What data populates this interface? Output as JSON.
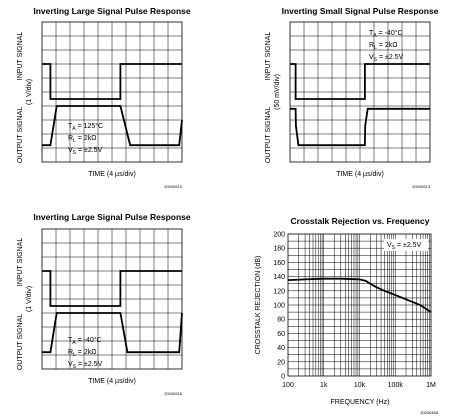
{
  "chart_data": [
    {
      "type": "line",
      "title": "Inverting Large Signal Pulse Response",
      "xlabel": "TIME (4 µs/div)",
      "ylabel_top": "INPUT SIGNAL",
      "ylabel_bottom": "OUTPUT SIGNAL",
      "ylabel_scale": "(1 V/div)",
      "conditions": [
        {
          "sym": "T",
          "sub": "A",
          "val": " = 125°C"
        },
        {
          "sym": "R",
          "sub": "L",
          "val": " = 2kΩ"
        },
        {
          "sym": "V",
          "sub": "S",
          "val": " = ±2.5V"
        }
      ],
      "figure_id": "20030615",
      "series": [
        {
          "name": "INPUT SIGNAL",
          "x": [
            0,
            0.6,
            0.6,
            5.6,
            5.6,
            10
          ],
          "y": [
            7.0,
            7.0,
            4.5,
            4.5,
            7.0,
            7.0
          ]
        },
        {
          "name": "OUTPUT SIGNAL",
          "x": [
            0,
            0.6,
            1.05,
            5.6,
            6.3,
            9.8,
            10
          ],
          "y": [
            1.2,
            1.2,
            4.0,
            4.0,
            1.2,
            1.2,
            3.0
          ]
        }
      ]
    },
    {
      "type": "line",
      "title": "Inverting Small Signal Pulse Response",
      "xlabel": "TIME (4 µs/div)",
      "ylabel_top": "INPUT SIGNAL",
      "ylabel_bottom": "OUTPUT SIGNAL",
      "ylabel_scale": "(50 mV/div)",
      "conditions": [
        {
          "sym": "T",
          "sub": "A",
          "val": " = -40°C"
        },
        {
          "sym": "R",
          "sub": "L",
          "val": " = 2kΩ"
        },
        {
          "sym": "V",
          "sub": "S",
          "val": " = ±2.5V"
        }
      ],
      "figure_id": "20030613",
      "series": [
        {
          "name": "INPUT SIGNAL",
          "x": [
            0,
            0.4,
            0.4,
            5.35,
            5.35,
            10
          ],
          "y": [
            7.0,
            7.0,
            4.5,
            4.5,
            7.0,
            7.0
          ]
        },
        {
          "name": "OUTPUT SIGNAL",
          "x": [
            0,
            0.4,
            0.42,
            0.6,
            5.35,
            5.37,
            5.55,
            10
          ],
          "y": [
            3.8,
            3.8,
            2.6,
            1.2,
            1.2,
            2.6,
            3.8,
            3.8
          ]
        }
      ]
    },
    {
      "type": "line",
      "title": "Inverting Large Signal Pulse Response",
      "xlabel": "TIME (4 µs/div)",
      "ylabel_top": "INPUT SIGNAL",
      "ylabel_bottom": "OUTPUT SIGNAL",
      "ylabel_scale": "(1 V/div)",
      "conditions": [
        {
          "sym": "T",
          "sub": "A",
          "val": " = -40°C"
        },
        {
          "sym": "R",
          "sub": "L",
          "val": " = 2kΩ"
        },
        {
          "sym": "V",
          "sub": "S",
          "val": " = ±2.5V"
        }
      ],
      "figure_id": "20030616",
      "series": [
        {
          "name": "INPUT SIGNAL",
          "x": [
            0,
            0.6,
            0.6,
            5.6,
            5.6,
            10
          ],
          "y": [
            7.0,
            7.0,
            4.5,
            4.5,
            7.0,
            7.0
          ]
        },
        {
          "name": "OUTPUT SIGNAL",
          "x": [
            0,
            0.6,
            1.05,
            5.6,
            6.1,
            9.8,
            10
          ],
          "y": [
            1.2,
            1.2,
            4.0,
            4.0,
            1.2,
            1.2,
            4.0
          ]
        }
      ]
    },
    {
      "type": "line",
      "title": "Crosstalk Rejection vs. Frequency",
      "xlabel": "FREQUENCY (Hz)",
      "ylabel": "CROSSTALK REJECTION (dB)",
      "xscale": "log",
      "xlim": [
        100,
        1000000
      ],
      "ylim": [
        0,
        200
      ],
      "x_ticks": [
        "100",
        "1k",
        "10k",
        "100k",
        "1M"
      ],
      "y_ticks": [
        "0",
        "20",
        "40",
        "60",
        "80",
        "100",
        "120",
        "140",
        "160",
        "180",
        "200"
      ],
      "conditions": [
        {
          "sym": "V",
          "sub": "S",
          "val": " = ±2.5V"
        }
      ],
      "figure_id": "20030458",
      "series": [
        {
          "x": [
            100,
            300,
            1000,
            3000,
            10000,
            15000,
            20000,
            30000,
            50000,
            100000,
            200000,
            500000,
            1000000
          ],
          "y": [
            135,
            136,
            137,
            137,
            136,
            134,
            130,
            125,
            120,
            114,
            108,
            100,
            90
          ]
        }
      ]
    }
  ]
}
